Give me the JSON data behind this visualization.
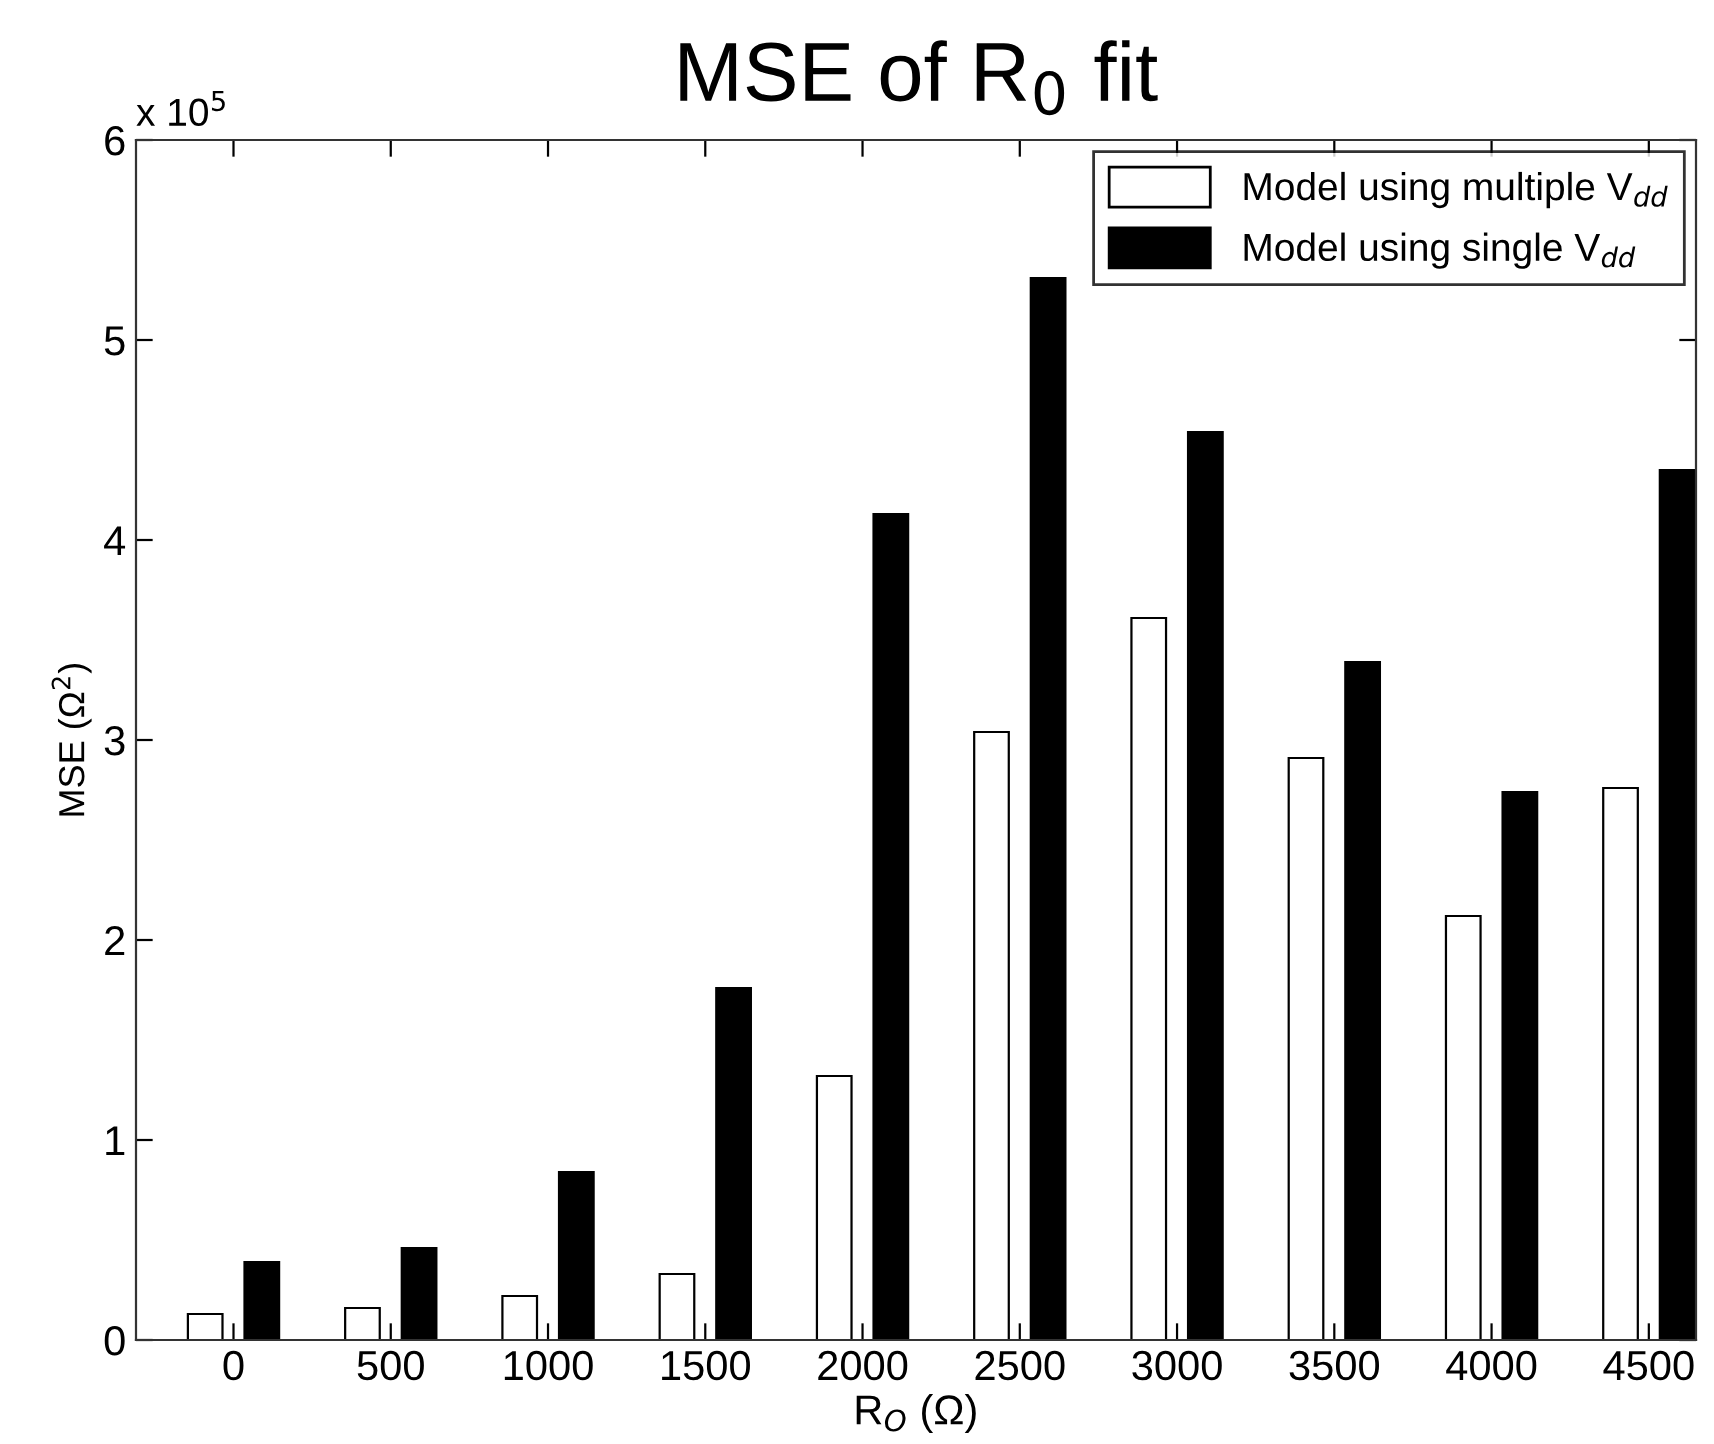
{
  "chart_data": {
    "type": "bar",
    "title": "MSE of R$_{0}$ fit",
    "xlabel": "R$_{O}$ (Ω)",
    "ylabel": "MSE (Ω$^{2}$)",
    "annotations": [
      "x 10$^{5}$"
    ],
    "categories": [
      "0",
      "500",
      "1000",
      "1500",
      "2000",
      "2500",
      "3000",
      "3500",
      "4000",
      "4500"
    ],
    "series": [
      {
        "name": "Model using multiple V$_{dd}$",
        "color": "#ffffff",
        "values": [
          0.13,
          0.16,
          0.22,
          0.33,
          1.32,
          3.04,
          3.61,
          2.91,
          2.12,
          2.76
        ]
      },
      {
        "name": "Model using single V$_{dd}$",
        "color": "#000000",
        "values": [
          0.39,
          0.46,
          0.84,
          1.76,
          4.13,
          5.31,
          4.54,
          3.39,
          2.74,
          4.35
        ]
      }
    ],
    "ylim": [
      0,
      6
    ],
    "yticks": [
      0,
      1,
      2,
      3,
      4,
      5,
      6
    ],
    "grid": false,
    "legend": "top right"
  }
}
